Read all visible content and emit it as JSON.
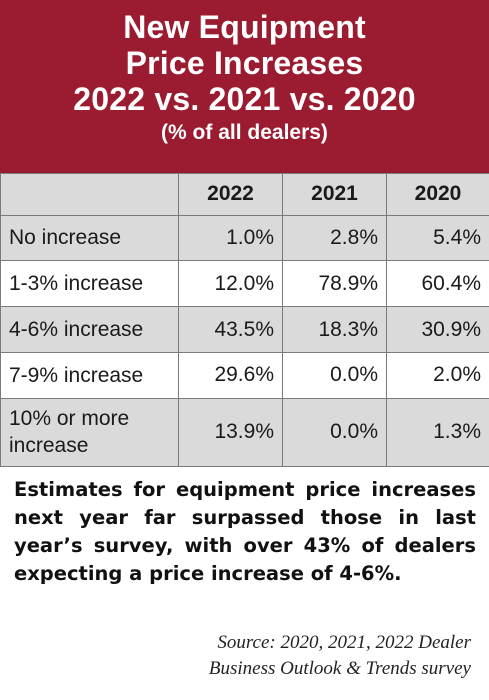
{
  "header": {
    "title_line1": "New Equipment",
    "title_line2": "Price Increases",
    "title_line3": "2022 vs. 2021 vs. 2020",
    "subtitle": "(% of all dealers)"
  },
  "chart_data": {
    "type": "table",
    "title": "New Equipment Price Increases 2022 vs. 2021 vs. 2020",
    "subtitle": "(% of all dealers)",
    "columns": [
      "2022",
      "2021",
      "2020"
    ],
    "rows": [
      {
        "label": "No increase",
        "values": [
          "1.0%",
          "2.8%",
          "5.4%"
        ]
      },
      {
        "label": "1-3% increase",
        "values": [
          "12.0%",
          "78.9%",
          "60.4%"
        ]
      },
      {
        "label": "4-6% increase",
        "values": [
          "43.5%",
          "18.3%",
          "30.9%"
        ]
      },
      {
        "label": "7-9% increase",
        "values": [
          "29.6%",
          "0.0%",
          "2.0%"
        ]
      },
      {
        "label": "10% or more increase",
        "values": [
          "13.9%",
          "0.0%",
          "1.3%"
        ]
      }
    ]
  },
  "caption": "Estimates for equipment price increases next year far surpassed those in last year’s survey, with over 43% of dealers expecting a price increase of 4-6%.",
  "source_line1": "Source: 2020, 2021, 2022 Dealer",
  "source_line2": "Business Outlook & Trends survey",
  "colors": {
    "header_bg": "#9b1b30",
    "row_shade": "#dadada",
    "border": "#7a7a7a"
  }
}
